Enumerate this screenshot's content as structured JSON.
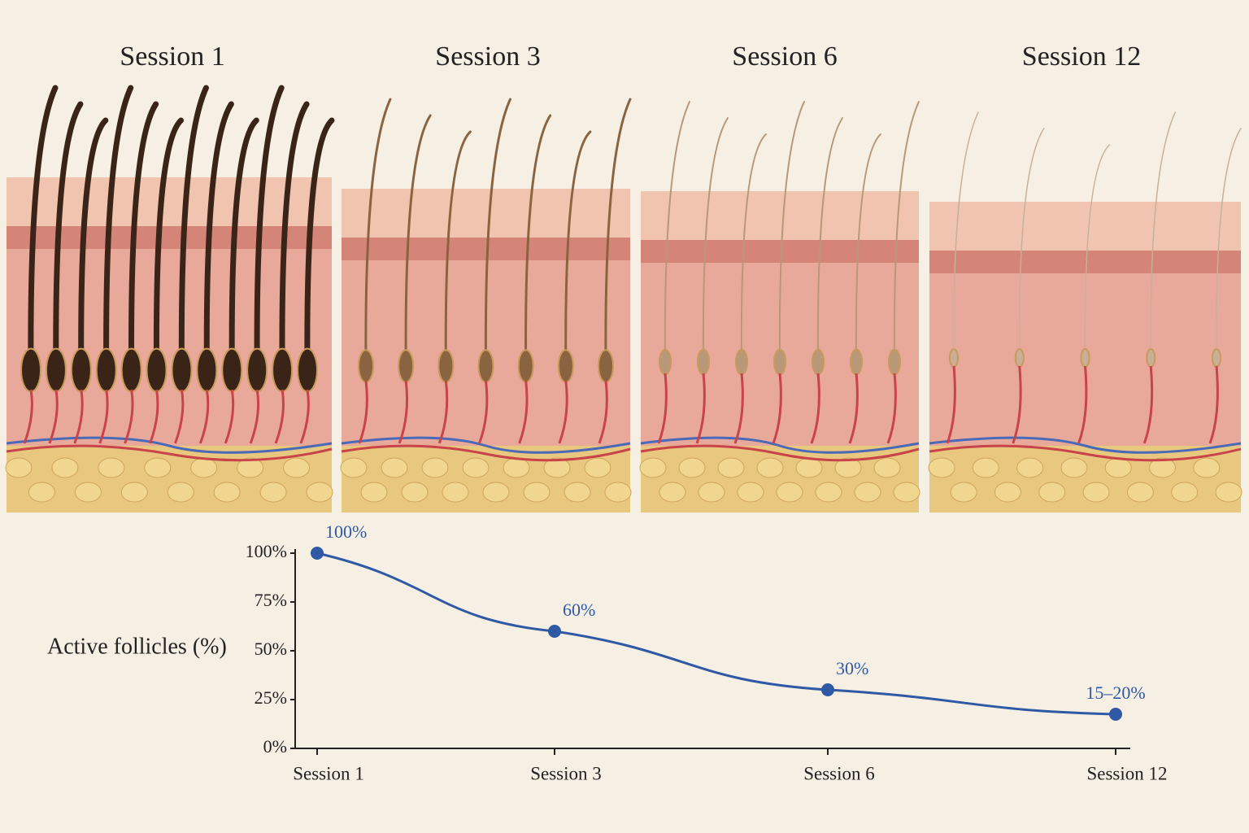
{
  "chart_data": {
    "type": "line",
    "panels": [
      "Session 1",
      "Session 3",
      "Session 6",
      "Session 12"
    ],
    "ylabel": "Active follicles (%)",
    "categories": [
      "Session 1",
      "Session 3",
      "Session 6",
      "Session 12"
    ],
    "values": [
      100,
      60,
      30,
      17.5
    ],
    "value_labels": [
      "100%",
      "60%",
      "30%",
      "15–20%"
    ],
    "color": "#2f58a5",
    "ylim": [
      0,
      100
    ],
    "yticks": [
      {
        "value": 0,
        "label": "0%"
      },
      {
        "value": 25,
        "label": "25%"
      },
      {
        "value": 50,
        "label": "50%"
      },
      {
        "value": 75,
        "label": "75%"
      },
      {
        "value": 100,
        "label": "100%"
      }
    ]
  }
}
